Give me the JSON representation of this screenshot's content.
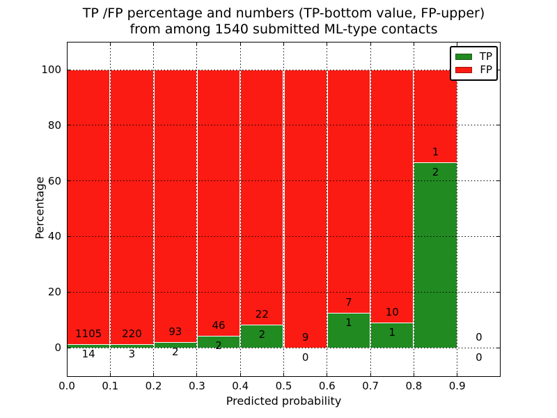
{
  "title": {
    "line1": "TP /FP percentage and numbers (TP-bottom value, FP-upper)",
    "line2": "from among 1540 submitted ML-type contacts"
  },
  "axes": {
    "xlabel": "Predicted probability",
    "ylabel": "Percentage",
    "x_tick_labels": [
      "0.0",
      "0.1",
      "0.2",
      "0.3",
      "0.4",
      "0.5",
      "0.6",
      "0.7",
      "0.8",
      "0.9"
    ],
    "x_tick_values": [
      0.0,
      0.1,
      0.2,
      0.3,
      0.4,
      0.5,
      0.6,
      0.7,
      0.8,
      0.9
    ],
    "y_tick_labels": [
      "0",
      "20",
      "40",
      "60",
      "80",
      "100"
    ],
    "y_tick_values": [
      0,
      20,
      40,
      60,
      80,
      100
    ]
  },
  "legend": {
    "items": [
      {
        "label": "TP",
        "color": "#218a21"
      },
      {
        "label": "FP",
        "color": "#fb1b12"
      }
    ]
  },
  "chart_data": {
    "type": "bar",
    "stacking": "percentage",
    "title": "TP /FP percentage and numbers (TP-bottom value, FP-upper) from among 1540 submitted ML-type contacts",
    "xlabel": "Predicted probability",
    "ylabel": "Percentage",
    "total_contacts": 1540,
    "xlim": [
      0.0,
      1.0
    ],
    "ylim": [
      -12,
      110
    ],
    "grid": true,
    "grid_style": "dotted",
    "legend_position": "upper right",
    "bin_width": 0.1,
    "colors": {
      "tp": "#218a21",
      "fp": "#fb1b12"
    },
    "bins": [
      {
        "x_start": 0.0,
        "x_end": 0.1,
        "tp": 14,
        "fp": 1105,
        "tp_pct": 1.25,
        "fp_pct": 98.75
      },
      {
        "x_start": 0.1,
        "x_end": 0.2,
        "tp": 3,
        "fp": 220,
        "tp_pct": 1.35,
        "fp_pct": 98.65
      },
      {
        "x_start": 0.2,
        "x_end": 0.3,
        "tp": 2,
        "fp": 93,
        "tp_pct": 2.11,
        "fp_pct": 97.89
      },
      {
        "x_start": 0.3,
        "x_end": 0.4,
        "tp": 2,
        "fp": 46,
        "tp_pct": 4.17,
        "fp_pct": 95.83
      },
      {
        "x_start": 0.4,
        "x_end": 0.5,
        "tp": 2,
        "fp": 22,
        "tp_pct": 8.33,
        "fp_pct": 91.67
      },
      {
        "x_start": 0.5,
        "x_end": 0.6,
        "tp": 0,
        "fp": 9,
        "tp_pct": 0,
        "fp_pct": 100
      },
      {
        "x_start": 0.6,
        "x_end": 0.7,
        "tp": 1,
        "fp": 7,
        "tp_pct": 12.5,
        "fp_pct": 87.5
      },
      {
        "x_start": 0.7,
        "x_end": 0.8,
        "tp": 1,
        "fp": 10,
        "tp_pct": 9.09,
        "fp_pct": 90.91
      },
      {
        "x_start": 0.8,
        "x_end": 0.9,
        "tp": 2,
        "fp": 1,
        "tp_pct": 66.67,
        "fp_pct": 33.33
      },
      {
        "x_start": 0.9,
        "x_end": 1.0,
        "tp": 0,
        "fp": 0,
        "tp_pct": null,
        "fp_pct": null
      }
    ]
  }
}
